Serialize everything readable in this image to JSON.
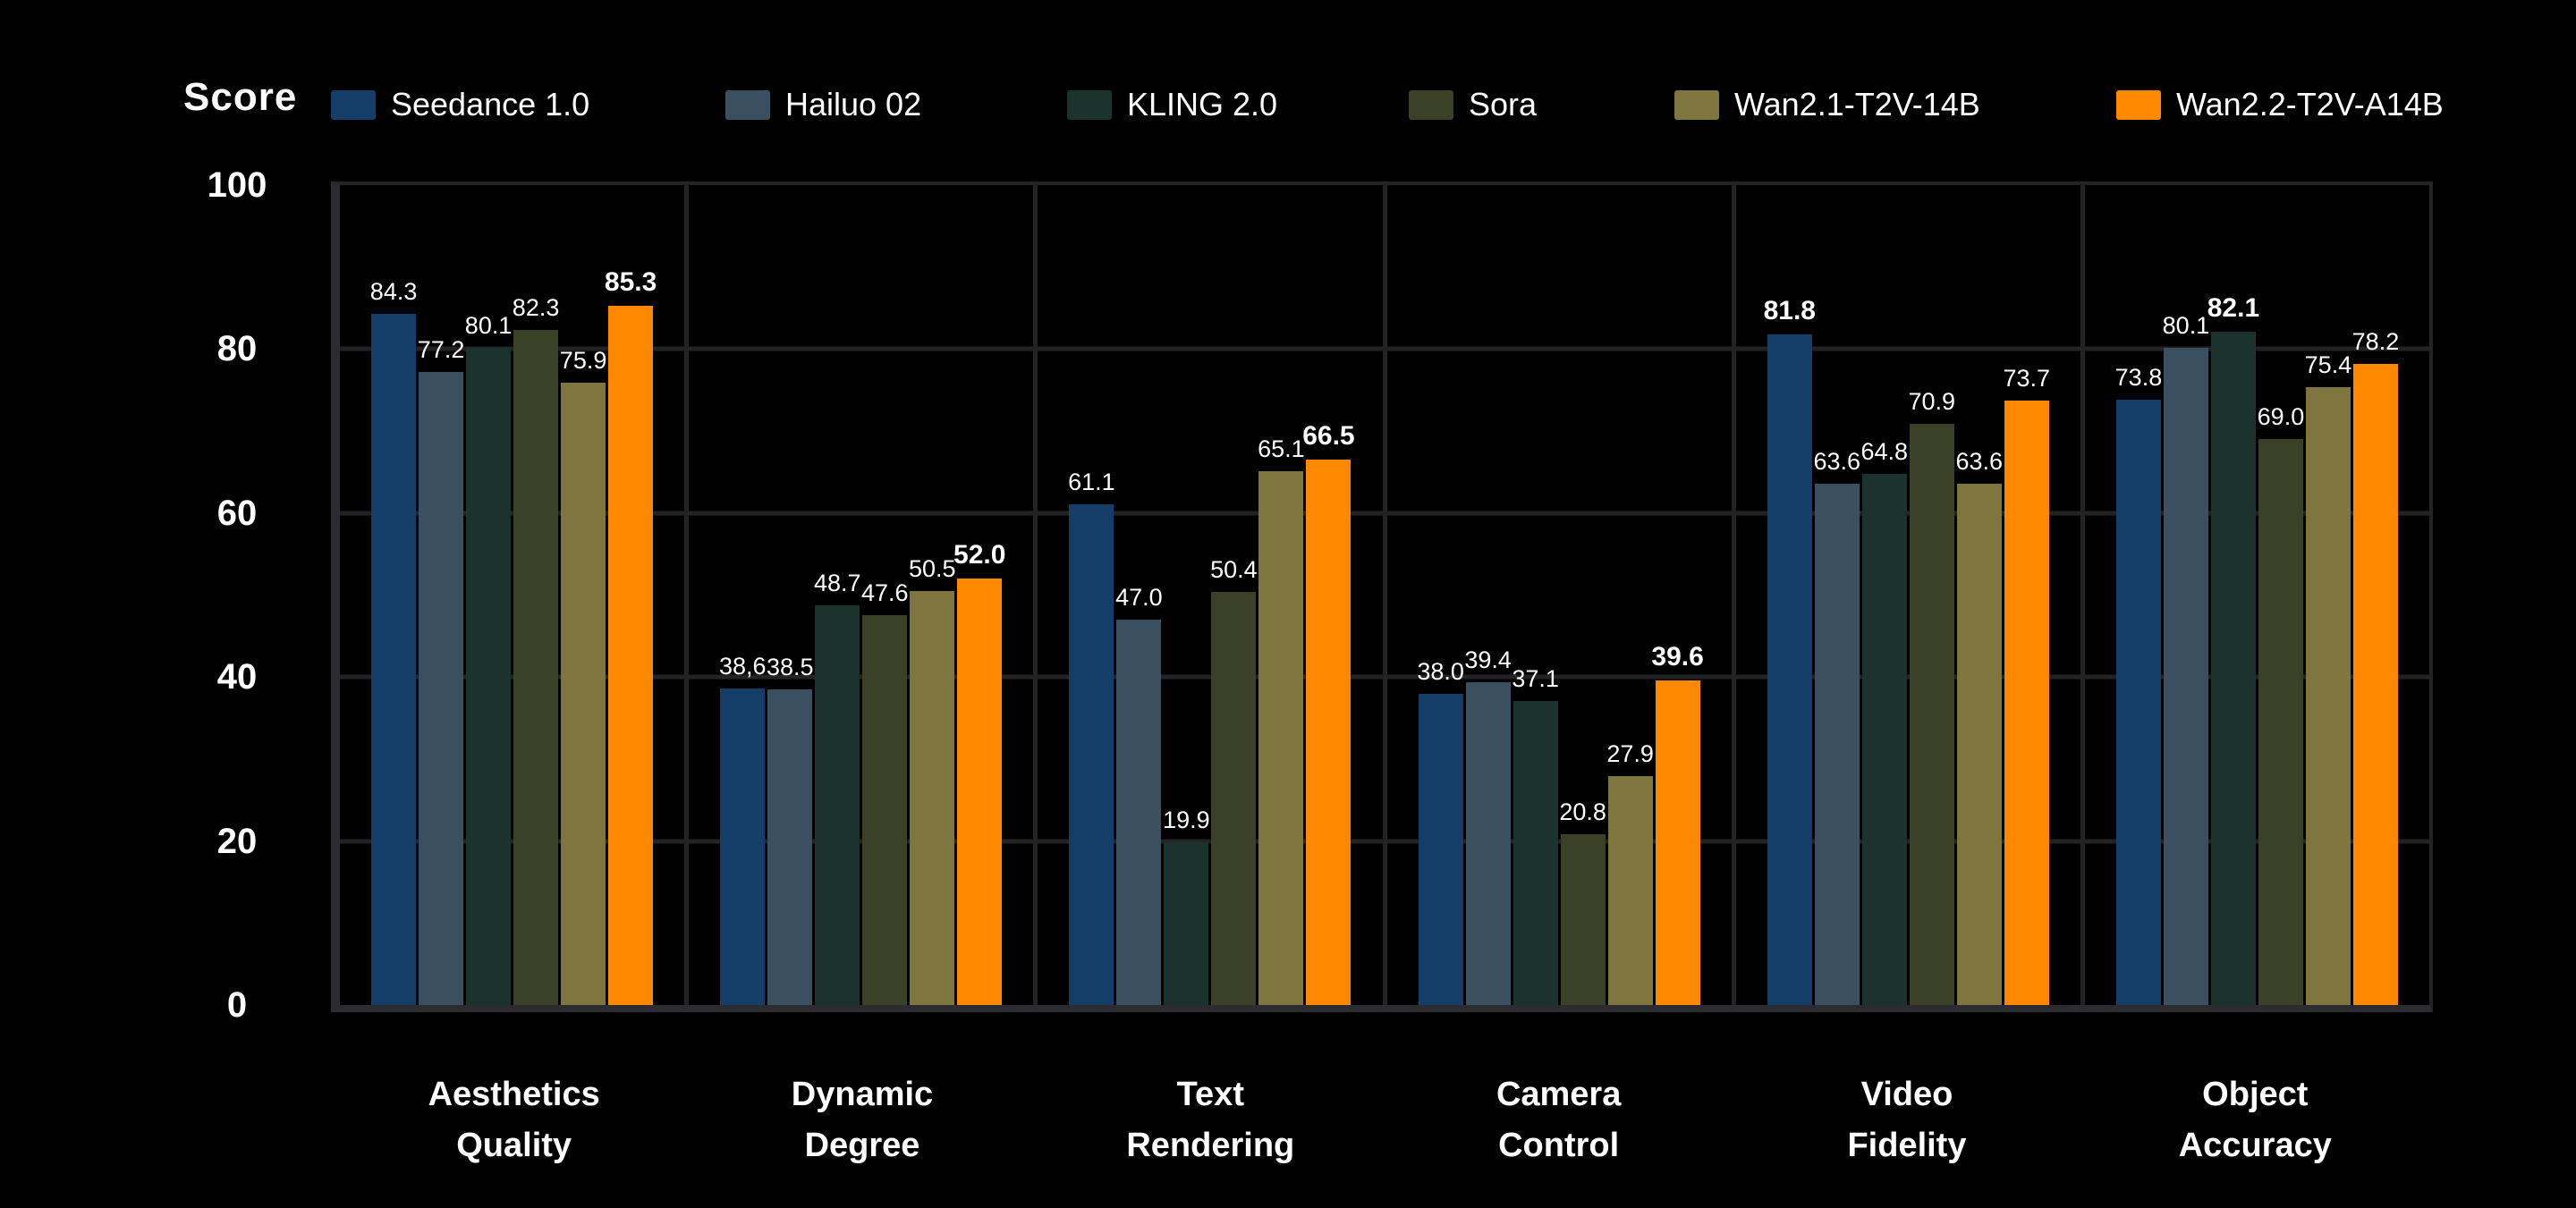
{
  "chart_data": {
    "type": "bar",
    "title": "Score",
    "legend_position": "top",
    "grid": true,
    "background_color": "#000000",
    "text_color": "#ffffff",
    "ylim": [
      0,
      100
    ],
    "yticks": [
      0,
      20,
      40,
      60,
      80,
      100
    ],
    "categories": [
      {
        "name": "Aesthetics Quality",
        "lines": [
          "Aesthetics",
          "Quality"
        ]
      },
      {
        "name": "Dynamic Degree",
        "lines": [
          "Dynamic",
          "Degree"
        ]
      },
      {
        "name": "Text Rendering",
        "lines": [
          "Text",
          "Rendering"
        ]
      },
      {
        "name": "Camera Control",
        "lines": [
          "Camera",
          "Control"
        ]
      },
      {
        "name": "Video Fidelity",
        "lines": [
          "Video",
          "Fidelity"
        ]
      },
      {
        "name": "Object Accuracy",
        "lines": [
          "Object",
          "Accuracy"
        ]
      }
    ],
    "bold_series_index_per_category": [
      5,
      5,
      5,
      5,
      0,
      2
    ],
    "series": [
      {
        "name": "Seedance 1.0",
        "color": "#143e67",
        "values": [
          84.3,
          38.6,
          61.1,
          38.0,
          81.8,
          73.8
        ],
        "labels": [
          "84.3",
          "38,6",
          "61.1",
          "38.0",
          "81.8",
          "73.8"
        ]
      },
      {
        "name": "Hailuo 02",
        "color": "#3a4f60",
        "values": [
          77.2,
          38.5,
          47.0,
          39.4,
          63.6,
          80.1
        ],
        "labels": [
          "77.2",
          "38.5",
          "47.0",
          "39.4",
          "63.6",
          "80.1"
        ]
      },
      {
        "name": "KLING 2.0",
        "color": "#1b332c",
        "values": [
          80.1,
          48.7,
          19.9,
          37.1,
          64.8,
          82.1
        ],
        "labels": [
          "80.1",
          "48.7",
          "19.9",
          "37.1",
          "64.8",
          "82.1"
        ]
      },
      {
        "name": "Sora",
        "color": "#3a4127",
        "values": [
          82.3,
          47.6,
          50.4,
          20.8,
          70.9,
          69.0
        ],
        "labels": [
          "82.3",
          "47.6",
          "50.4",
          "20.8",
          "70.9",
          "69.0"
        ]
      },
      {
        "name": "Wan2.1-T2V-14B",
        "color": "#7f753e",
        "values": [
          75.9,
          50.5,
          65.1,
          27.9,
          63.6,
          75.4
        ],
        "labels": [
          "75.9",
          "50.5",
          "65.1",
          "27.9",
          "63.6",
          "75.4"
        ]
      },
      {
        "name": "Wan2.2-T2V-A14B",
        "color": "#fe8901",
        "values": [
          85.3,
          52.0,
          66.5,
          39.6,
          73.7,
          78.2
        ],
        "labels": [
          "85.3",
          "52.0",
          "66.5",
          "39.6",
          "73.7",
          "78.2"
        ]
      }
    ]
  }
}
